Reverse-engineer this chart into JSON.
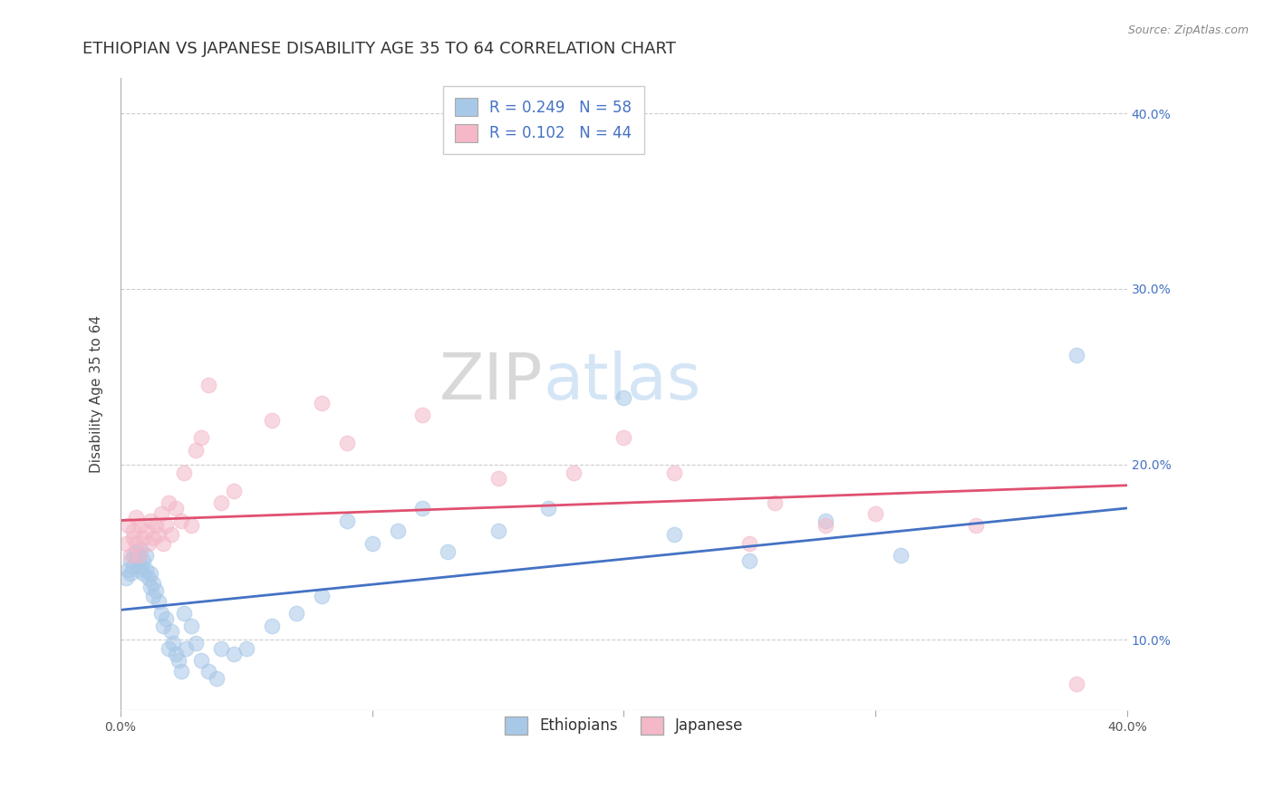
{
  "title": "ETHIOPIAN VS JAPANESE DISABILITY AGE 35 TO 64 CORRELATION CHART",
  "source": "Source: ZipAtlas.com",
  "ylabel": "Disability Age 35 to 64",
  "xlim": [
    0.0,
    0.4
  ],
  "ylim": [
    0.06,
    0.42
  ],
  "x_ticks": [
    0.0,
    0.1,
    0.2,
    0.3,
    0.4
  ],
  "x_tick_labels": [
    "0.0%",
    "",
    "",
    "",
    "40.0%"
  ],
  "y_ticks": [
    0.1,
    0.2,
    0.3,
    0.4
  ],
  "y_tick_labels": [
    "10.0%",
    "20.0%",
    "30.0%",
    "40.0%"
  ],
  "blue_color": "#a8c8e8",
  "pink_color": "#f4b8c8",
  "blue_line_color": "#4472c4",
  "pink_line_color": "#e05070",
  "legend_R1": "R = 0.249",
  "legend_N1": "N = 58",
  "legend_R2": "R = 0.102",
  "legend_N2": "N = 44",
  "watermark_zip": "ZIP",
  "watermark_atlas": "atlas",
  "grid_color": "#cccccc",
  "background_color": "#ffffff",
  "title_fontsize": 13,
  "axis_fontsize": 11,
  "tick_fontsize": 10,
  "legend_fontsize": 12,
  "eth_x": [
    0.002,
    0.003,
    0.004,
    0.004,
    0.005,
    0.005,
    0.006,
    0.006,
    0.007,
    0.007,
    0.008,
    0.008,
    0.009,
    0.009,
    0.01,
    0.01,
    0.011,
    0.012,
    0.012,
    0.013,
    0.013,
    0.014,
    0.015,
    0.016,
    0.017,
    0.018,
    0.019,
    0.02,
    0.021,
    0.022,
    0.023,
    0.024,
    0.025,
    0.026,
    0.028,
    0.03,
    0.032,
    0.035,
    0.038,
    0.04,
    0.045,
    0.05,
    0.06,
    0.07,
    0.08,
    0.09,
    0.1,
    0.11,
    0.12,
    0.13,
    0.15,
    0.17,
    0.2,
    0.22,
    0.25,
    0.28,
    0.31,
    0.38
  ],
  "eth_y": [
    0.135,
    0.14,
    0.138,
    0.145,
    0.142,
    0.148,
    0.145,
    0.15,
    0.14,
    0.148,
    0.142,
    0.152,
    0.138,
    0.145,
    0.14,
    0.148,
    0.135,
    0.13,
    0.138,
    0.125,
    0.132,
    0.128,
    0.122,
    0.115,
    0.108,
    0.112,
    0.095,
    0.105,
    0.098,
    0.092,
    0.088,
    0.082,
    0.115,
    0.095,
    0.108,
    0.098,
    0.088,
    0.082,
    0.078,
    0.095,
    0.092,
    0.095,
    0.108,
    0.115,
    0.125,
    0.168,
    0.155,
    0.162,
    0.175,
    0.15,
    0.162,
    0.175,
    0.238,
    0.16,
    0.145,
    0.168,
    0.148,
    0.262
  ],
  "jap_x": [
    0.002,
    0.003,
    0.004,
    0.005,
    0.005,
    0.006,
    0.006,
    0.007,
    0.008,
    0.009,
    0.01,
    0.011,
    0.012,
    0.013,
    0.014,
    0.015,
    0.016,
    0.017,
    0.018,
    0.019,
    0.02,
    0.022,
    0.024,
    0.025,
    0.028,
    0.03,
    0.032,
    0.035,
    0.04,
    0.045,
    0.06,
    0.08,
    0.09,
    0.12,
    0.15,
    0.18,
    0.2,
    0.22,
    0.25,
    0.26,
    0.28,
    0.3,
    0.34,
    0.38
  ],
  "jap_y": [
    0.155,
    0.165,
    0.148,
    0.158,
    0.162,
    0.17,
    0.155,
    0.148,
    0.165,
    0.158,
    0.162,
    0.155,
    0.168,
    0.158,
    0.165,
    0.16,
    0.172,
    0.155,
    0.165,
    0.178,
    0.16,
    0.175,
    0.168,
    0.195,
    0.165,
    0.208,
    0.215,
    0.245,
    0.178,
    0.185,
    0.225,
    0.235,
    0.212,
    0.228,
    0.192,
    0.195,
    0.215,
    0.195,
    0.155,
    0.178,
    0.165,
    0.172,
    0.165,
    0.075
  ]
}
